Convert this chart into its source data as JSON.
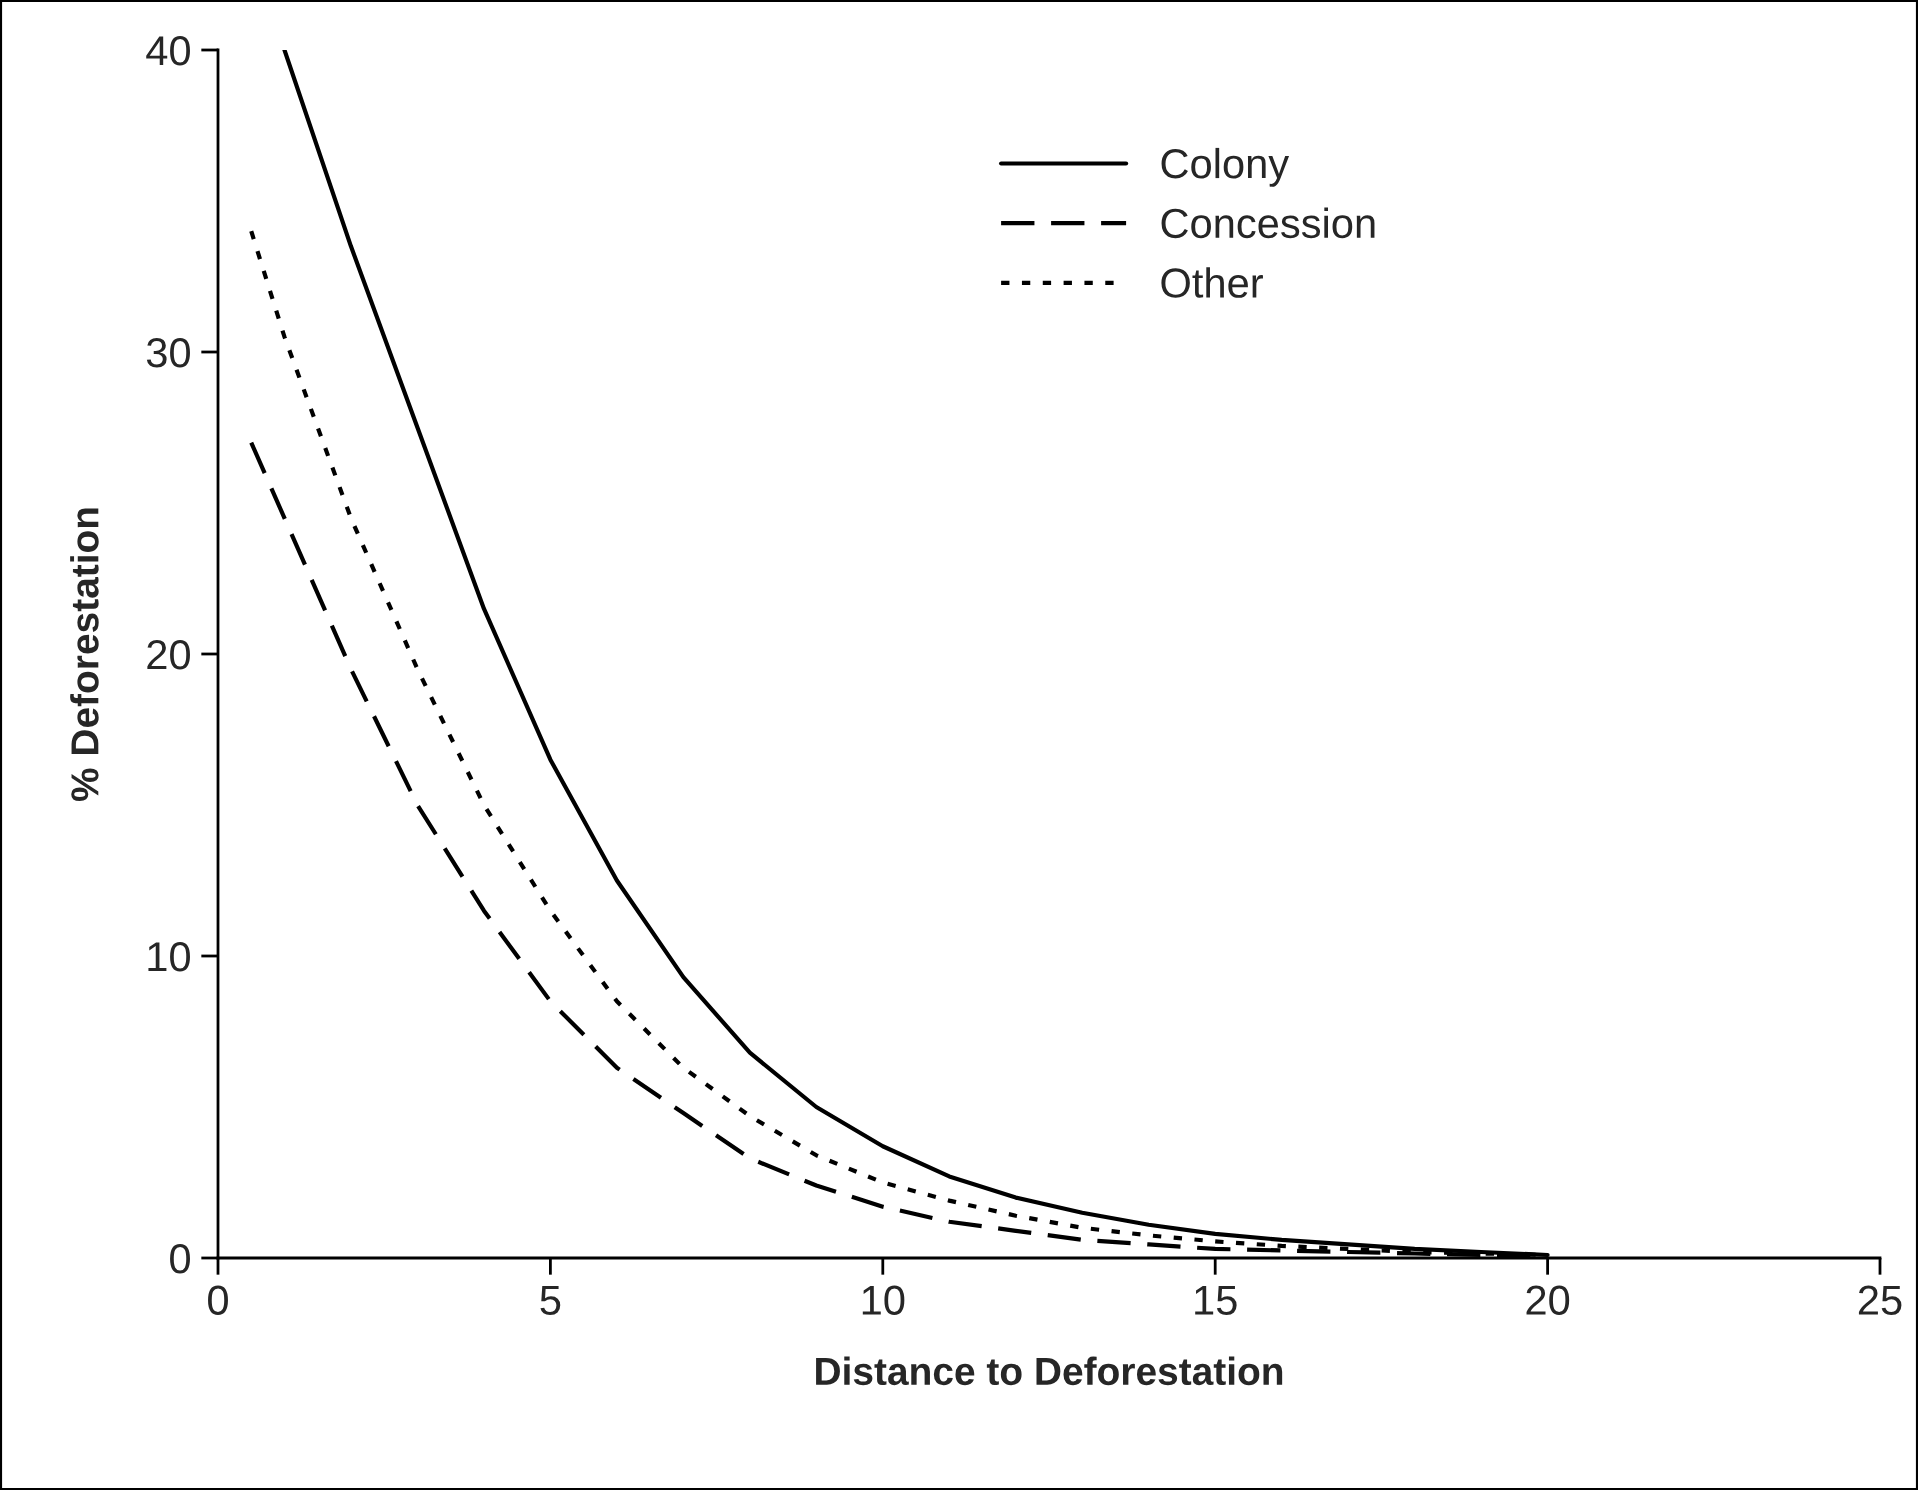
{
  "chart_data": {
    "type": "line",
    "xlabel": "Distance to Deforestation",
    "ylabel": "% Deforestation",
    "xlim": [
      0,
      25
    ],
    "xticks": [
      0,
      5,
      10,
      15,
      20,
      25
    ],
    "ylim": [
      0,
      40
    ],
    "yticks": [
      0,
      10,
      20,
      30,
      40
    ],
    "grid": false,
    "legend": "top right",
    "marker": "none",
    "series": [
      {
        "name": "Colony",
        "color": "#000000",
        "line_style": "solid",
        "x": [
          1,
          2,
          3,
          4,
          5,
          6,
          7,
          8,
          9,
          10,
          11,
          12,
          13,
          14,
          15,
          16,
          17,
          18,
          19,
          20
        ],
        "values": [
          40,
          33.5,
          27.5,
          21.5,
          16.5,
          12.5,
          9.3,
          6.8,
          5,
          3.7,
          2.7,
          2,
          1.5,
          1.1,
          0.8,
          0.6,
          0.45,
          0.3,
          0.2,
          0.1
        ]
      },
      {
        "name": "Concession",
        "color": "#000000",
        "line_style": "dashed",
        "x": [
          0.5,
          1,
          2,
          3,
          4,
          5,
          6,
          7,
          8,
          9,
          10,
          11,
          12,
          13,
          14,
          15,
          16,
          17,
          18,
          19,
          20
        ],
        "values": [
          27,
          24.5,
          19.5,
          15,
          11.5,
          8.5,
          6.3,
          4.8,
          3.3,
          2.4,
          1.7,
          1.2,
          0.9,
          0.6,
          0.45,
          0.3,
          0.25,
          0.2,
          0.15,
          0.1,
          0.08
        ]
      },
      {
        "name": "Other",
        "color": "#000000",
        "line_style": "dotted",
        "x": [
          0.5,
          1,
          2,
          3,
          4,
          5,
          6,
          7,
          8,
          9,
          10,
          11,
          12,
          13,
          14,
          15,
          16,
          17,
          18,
          19,
          20
        ],
        "values": [
          34,
          30.5,
          24.5,
          19.5,
          15,
          11.5,
          8.5,
          6.3,
          4.7,
          3.4,
          2.5,
          1.9,
          1.4,
          1.0,
          0.75,
          0.55,
          0.4,
          0.3,
          0.2,
          0.15,
          0.1
        ]
      }
    ]
  }
}
